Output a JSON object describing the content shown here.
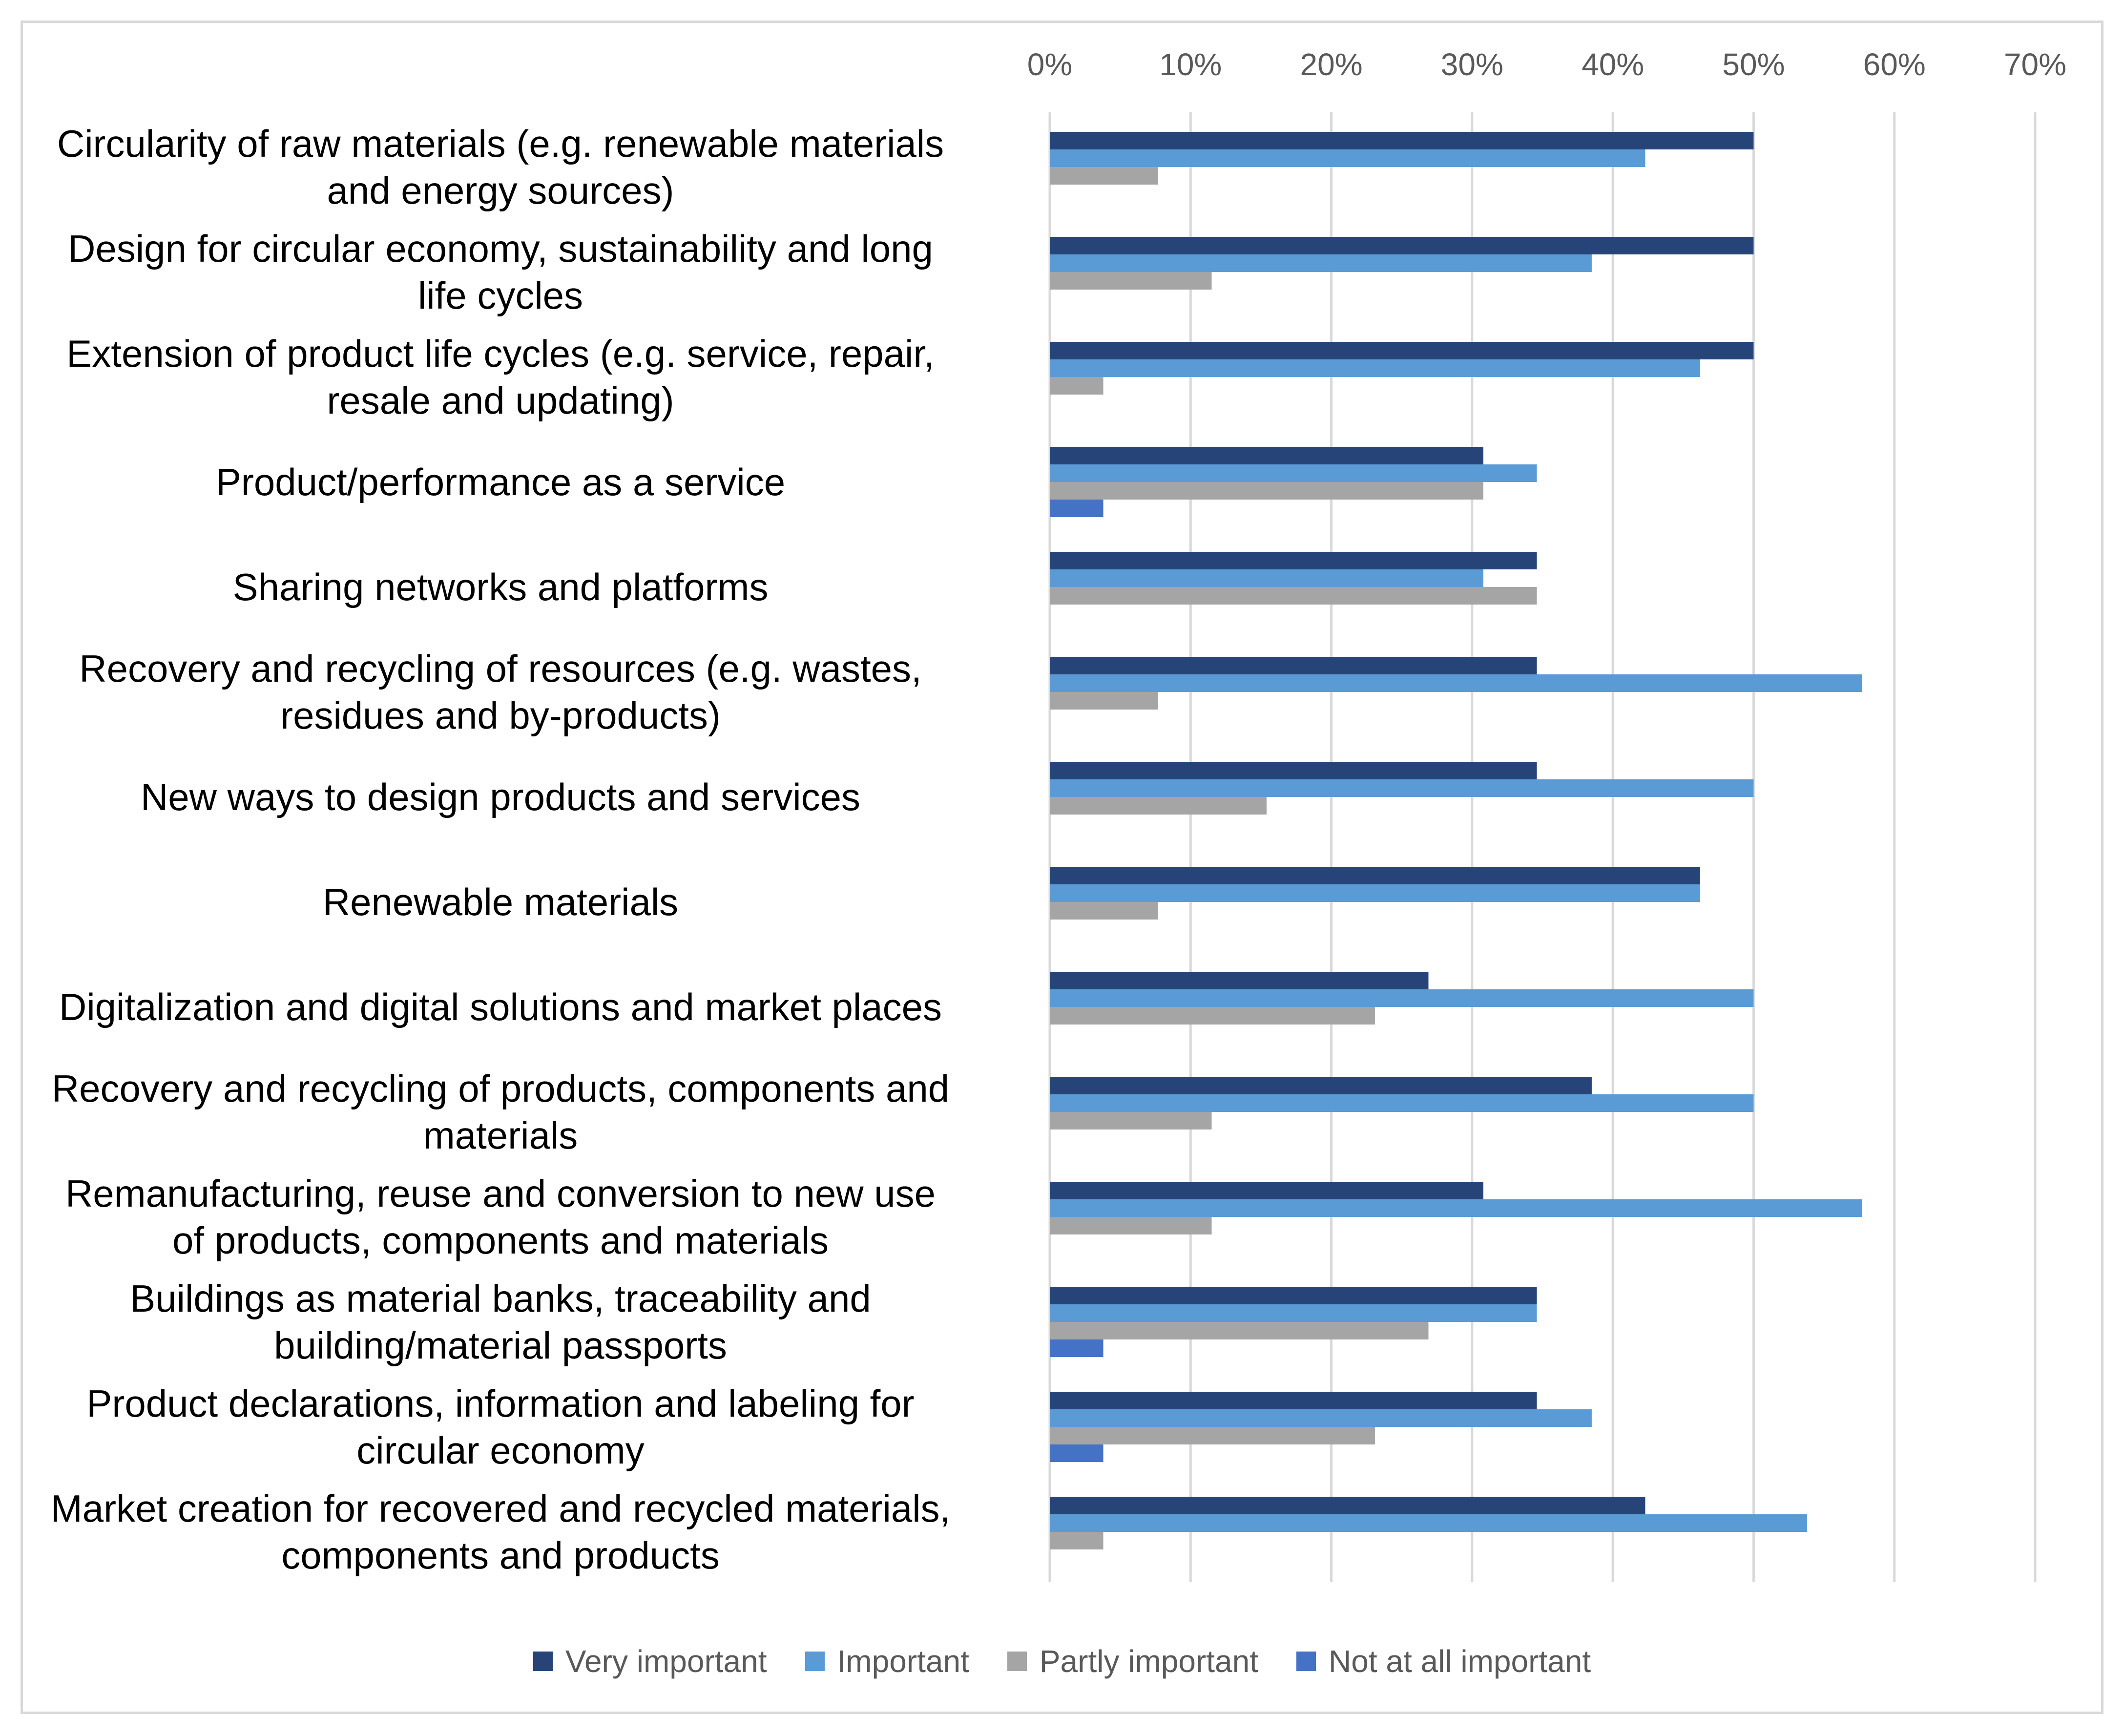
{
  "chart_data": {
    "type": "bar",
    "orientation": "horizontal",
    "title": "",
    "xlabel": "",
    "ylabel": "",
    "xlim": [
      0,
      70
    ],
    "ticks": [
      "0%",
      "10%",
      "20%",
      "30%",
      "40%",
      "50%",
      "60%",
      "70%"
    ],
    "tick_values": [
      0,
      10,
      20,
      30,
      40,
      50,
      60,
      70
    ],
    "grid": true,
    "legend_position": "bottom",
    "categories": [
      "Circularity of raw materials (e.g. renewable materials\nand energy sources)",
      "Design for circular economy, sustainability and long\nlife cycles",
      "Extension of product life cycles (e.g. service, repair,\nresale and updating)",
      "Product/performance as a service",
      "Sharing networks and platforms",
      "Recovery and recycling of resources (e.g. wastes,\nresidues and by-products)",
      "New ways to design products and services",
      "Renewable materials",
      "Digitalization and digital solutions and market places",
      "Recovery and recycling of products, components and\nmaterials",
      "Remanufacturing, reuse and conversion to new use\nof products, components and materials",
      "Buildings as material banks, traceability and\nbuilding/material passports",
      "Product declarations, information and labeling for\ncircular economy",
      "Market creation for recovered and recycled materials,\ncomponents and products"
    ],
    "series": [
      {
        "name": "Very important",
        "color": "#264478",
        "values": [
          50,
          50,
          50,
          30.8,
          34.6,
          34.6,
          34.6,
          46.2,
          26.9,
          38.5,
          30.8,
          34.6,
          34.6,
          42.3
        ]
      },
      {
        "name": "Important",
        "color": "#5b9bd5",
        "values": [
          42.3,
          38.5,
          46.2,
          34.6,
          30.8,
          57.7,
          50,
          46.2,
          50,
          50,
          57.7,
          34.6,
          38.5,
          53.8
        ]
      },
      {
        "name": "Partly important",
        "color": "#a5a5a5",
        "values": [
          7.7,
          11.5,
          3.8,
          30.8,
          34.6,
          7.7,
          15.4,
          7.7,
          23.1,
          11.5,
          11.5,
          26.9,
          23.1,
          3.8
        ]
      },
      {
        "name": "Not at all important",
        "color": "#4472c4",
        "values": [
          0,
          0,
          0,
          3.8,
          0,
          0,
          0,
          0,
          0,
          0,
          0,
          3.8,
          3.8,
          0
        ]
      }
    ]
  }
}
